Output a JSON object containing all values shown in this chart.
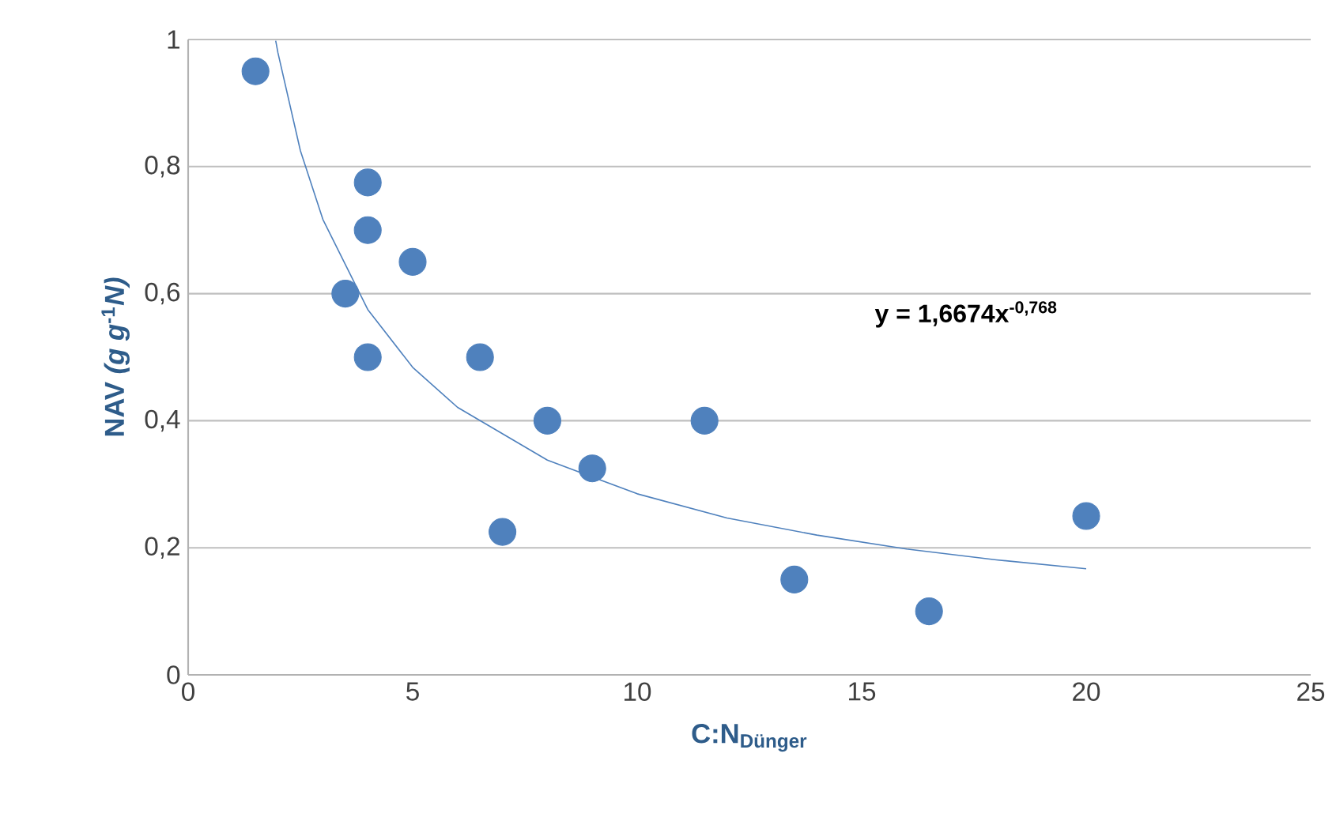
{
  "chart_data": {
    "type": "scatter",
    "xlabel": "C:N$_{Dünger}$",
    "ylabel": "**NAV** *(g g*$^{-1}$*N)*",
    "series": [
      {
        "color": "#4f81bd",
        "marker": "circle",
        "x": [
          1.5,
          4,
          4,
          5,
          3.5,
          4,
          6.5,
          8,
          9,
          7,
          11.5,
          13.5,
          16.5,
          20
        ],
        "values": [
          0.95,
          0.775,
          0.7,
          0.65,
          0.6,
          0.5,
          0.5,
          0.4,
          0.325,
          0.225,
          0.4,
          0.15,
          0.1,
          0.25
        ]
      },
      {
        "type": "line",
        "color": "#4f81bd",
        "marker": "none",
        "x": [
          1.95,
          2,
          2.5,
          3,
          4,
          5,
          6,
          8,
          10,
          12,
          14,
          16,
          18,
          20
        ],
        "values": [
          0.998,
          0.979,
          0.825,
          0.717,
          0.575,
          0.484,
          0.421,
          0.338,
          0.285,
          0.247,
          0.22,
          0.198,
          0.181,
          0.167
        ]
      }
    ],
    "xlim": [
      0,
      25
    ],
    "xticks": [
      0,
      5,
      10,
      15,
      20,
      25
    ],
    "ylim": [
      0,
      1
    ],
    "yticks": [
      0,
      {
        "value": 0.2,
        "label": "0,2"
      },
      {
        "value": 0.4,
        "label": "0,4"
      },
      {
        "value": 0.6,
        "label": "0,6"
      },
      {
        "value": 0.8,
        "label": "0,8"
      },
      1
    ],
    "grid": "y",
    "annotations": [
      "y = 1,6674x$^{-0,768}$"
    ]
  }
}
